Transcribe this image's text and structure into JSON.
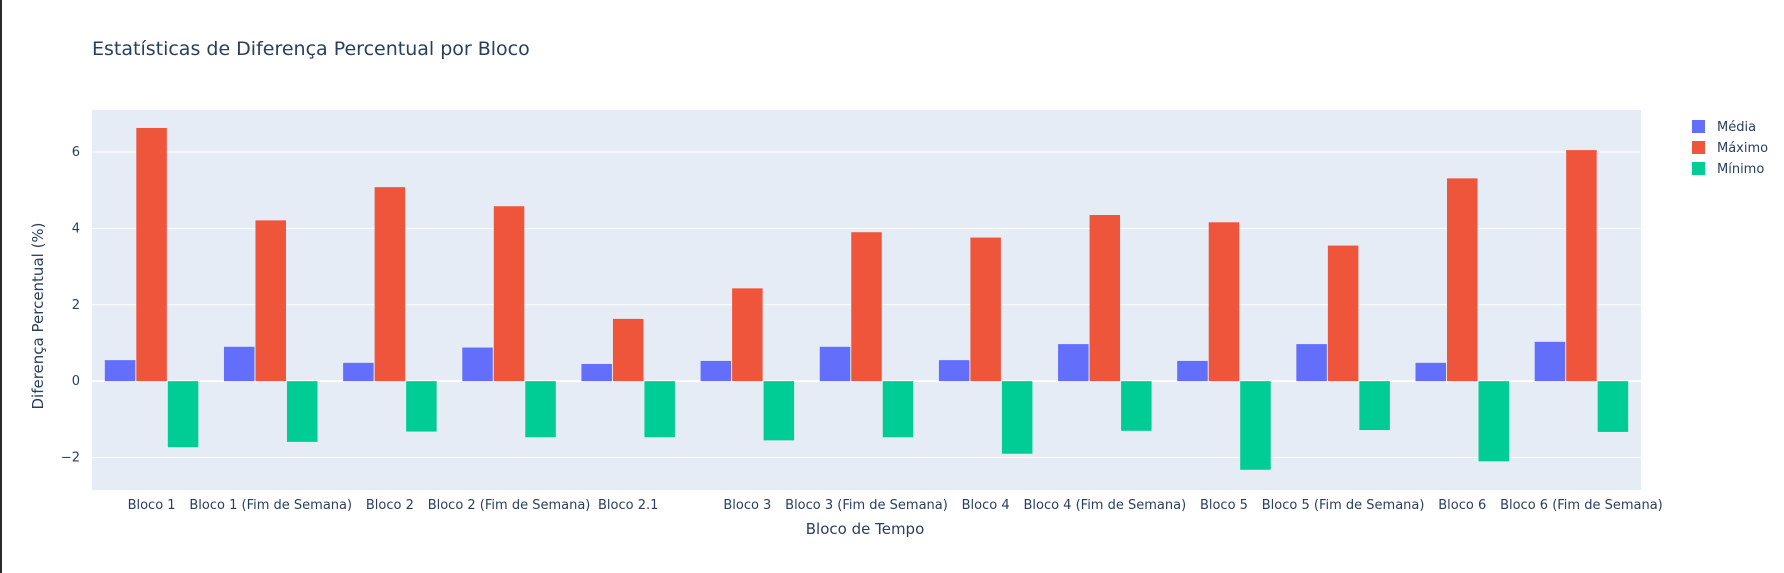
{
  "chart_data": {
    "type": "bar",
    "title": "Estatísticas de Diferença Percentual por Bloco",
    "xlabel": "Bloco de Tempo",
    "ylabel": "Diferença Percentual (%)",
    "ylim": [
      -2.85,
      7.1
    ],
    "yticks": [
      -2,
      0,
      2,
      4,
      6
    ],
    "ytick_labels": [
      "−2",
      "0",
      "2",
      "4",
      "6"
    ],
    "grid": true,
    "legend_position": "top-right",
    "categories": [
      "Bloco 1",
      "Bloco 1 (Fim de Semana)",
      "Bloco 2",
      "Bloco 2 (Fim de Semana)",
      "Bloco 2.1",
      "Bloco 3",
      "Bloco 3 (Fim de Semana)",
      "Bloco 4",
      "Bloco 4 (Fim de Semana)",
      "Bloco 5",
      "Bloco 5 (Fim de Semana)",
      "Bloco 6",
      "Bloco 6 (Fim de Semana)"
    ],
    "series": [
      {
        "name": "Média",
        "color": "#636efa",
        "values": [
          0.55,
          0.9,
          0.48,
          0.88,
          0.45,
          0.53,
          0.9,
          0.55,
          0.97,
          0.53,
          0.97,
          0.48,
          1.03
        ]
      },
      {
        "name": "Máximo",
        "color": "#ef553b",
        "values": [
          6.63,
          4.21,
          5.08,
          4.58,
          1.63,
          2.43,
          3.9,
          3.76,
          4.35,
          4.16,
          3.55,
          5.31,
          6.05
        ]
      },
      {
        "name": "Mínimo",
        "color": "#00cc96",
        "values": [
          -1.73,
          -1.59,
          -1.32,
          -1.47,
          -1.47,
          -1.55,
          -1.47,
          -1.9,
          -1.3,
          -2.32,
          -1.28,
          -2.1,
          -1.33
        ]
      }
    ],
    "colors": {
      "plot_background": "#e5ecf6",
      "grid": "#ffffff",
      "text": "#2a3f5f"
    }
  }
}
